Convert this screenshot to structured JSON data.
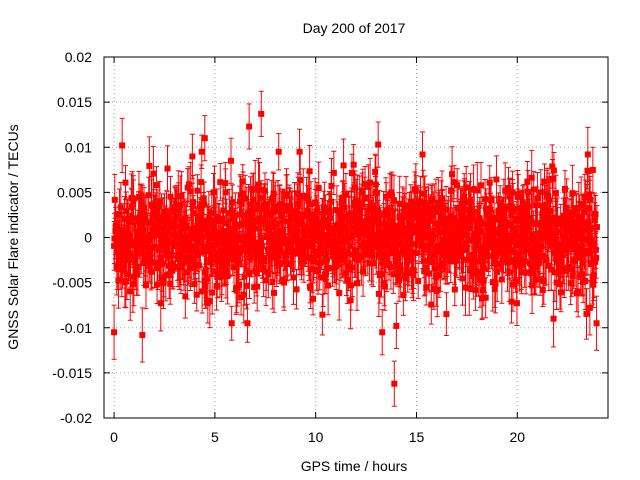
{
  "chart_data": {
    "type": "scatter",
    "title": "Day 200 of 2017",
    "xlabel": "GPS time / hours",
    "ylabel": "GNSS Solar Flare indicator / TECUs",
    "xlim": [
      -0.5,
      24.5
    ],
    "ylim": [
      -0.02,
      0.02
    ],
    "xticks": [
      0,
      5,
      10,
      15,
      20
    ],
    "xtick_labels": [
      "0",
      "5",
      "10",
      "15",
      "20"
    ],
    "yticks": [
      -0.02,
      -0.015,
      -0.01,
      -0.005,
      0,
      0.005,
      0.01,
      0.015,
      0.02
    ],
    "ytick_labels": [
      "-0.02",
      "-0.015",
      "-0.01",
      "-0.005",
      "0",
      "0.005",
      "0.01",
      "0.015",
      "0.02"
    ],
    "grid": true,
    "series_color": "#ff0000",
    "series": [
      {
        "name": "GNSS Solar Flare indicator",
        "marker": "square",
        "error_bars": true,
        "x_range": [
          0,
          23.95
        ],
        "points_per_hour": 60,
        "typical_sd": 0.003,
        "typical_error": 0.0025,
        "notable_points": [
          {
            "x": 0.0,
            "y": -0.0105,
            "err": 0.003
          },
          {
            "x": 7.3,
            "y": 0.0137,
            "err": 0.0025
          },
          {
            "x": 6.7,
            "y": 0.0123,
            "err": 0.0025
          },
          {
            "x": 4.5,
            "y": 0.011,
            "err": 0.0025
          },
          {
            "x": 5.8,
            "y": 0.0085,
            "err": 0.0025
          },
          {
            "x": 9.2,
            "y": 0.0095,
            "err": 0.0025
          },
          {
            "x": 13.1,
            "y": 0.0103,
            "err": 0.0025
          },
          {
            "x": 13.9,
            "y": -0.0162,
            "err": 0.0025
          },
          {
            "x": 13.3,
            "y": -0.0105,
            "err": 0.0025
          },
          {
            "x": 14.0,
            "y": -0.0098,
            "err": 0.0025
          },
          {
            "x": 15.3,
            "y": 0.0092,
            "err": 0.0025
          },
          {
            "x": 23.5,
            "y": 0.0092,
            "err": 0.003
          },
          {
            "x": 23.6,
            "y": -0.0078,
            "err": 0.003
          },
          {
            "x": 1.4,
            "y": -0.0108,
            "err": 0.003
          },
          {
            "x": 0.4,
            "y": 0.0102,
            "err": 0.003
          }
        ]
      }
    ]
  }
}
